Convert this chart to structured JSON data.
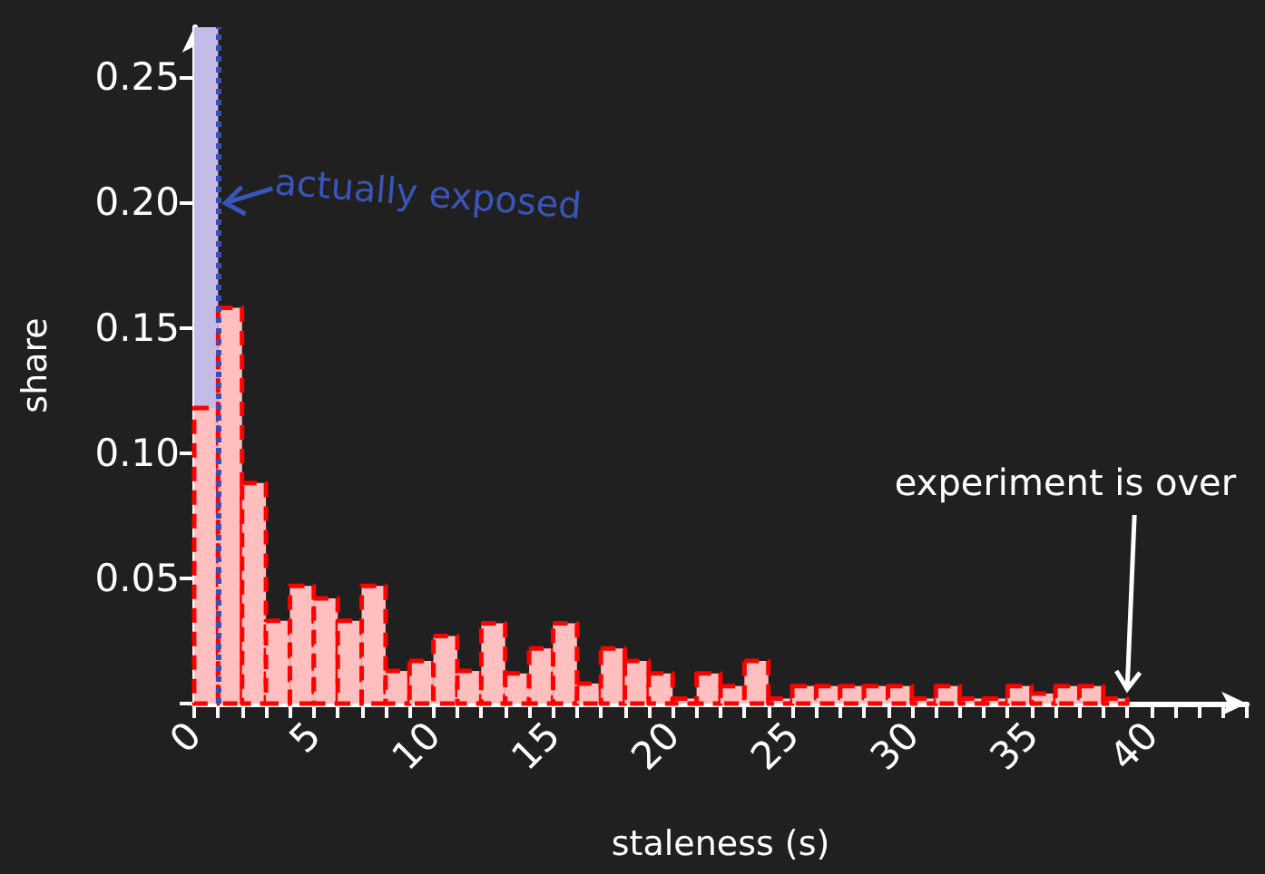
{
  "chart_data": {
    "type": "histogram",
    "xlabel": "staleness (s)",
    "ylabel": "share",
    "bins": [
      0,
      1,
      2,
      3,
      4,
      5,
      6,
      7,
      8,
      9,
      10,
      11,
      12,
      13,
      14,
      15,
      16,
      17,
      18,
      19,
      20,
      21,
      22,
      23,
      24,
      25,
      26,
      27,
      28,
      29,
      30,
      31,
      32,
      33,
      34,
      35,
      36,
      37,
      38,
      39
    ],
    "series": [
      {
        "color": "#ff0000",
        "values": [
          0.118,
          0.158,
          0.088,
          0.033,
          0.047,
          0.042,
          0.033,
          0.047,
          0.013,
          0.017,
          0.027,
          0.013,
          0.032,
          0.012,
          0.022,
          0.032,
          0.008,
          0.022,
          0.017,
          0.012,
          0.002,
          0.012,
          0.007,
          0.017,
          0.002,
          0.007,
          0.007,
          0.007,
          0.007,
          0.007,
          0.002,
          0.007,
          0.002,
          0.002,
          0.007,
          0.004,
          0.007,
          0.007,
          0.002
        ]
      }
    ],
    "line_style": "dashed",
    "xlim": [
      0,
      44
    ],
    "xticks": [
      0,
      {
        "value": 1,
        "label": null
      },
      {
        "value": 2,
        "label": null
      },
      {
        "value": 3,
        "label": null
      },
      {
        "value": 4,
        "label": null
      },
      5,
      {
        "value": 6,
        "label": null
      },
      {
        "value": 7,
        "label": null
      },
      {
        "value": 8,
        "label": null
      },
      {
        "value": 9,
        "label": null
      },
      10,
      {
        "value": 11,
        "label": null
      },
      {
        "value": 12,
        "label": null
      },
      {
        "value": 13,
        "label": null
      },
      {
        "value": 14,
        "label": null
      },
      15,
      {
        "value": 16,
        "label": null
      },
      {
        "value": 17,
        "label": null
      },
      {
        "value": 18,
        "label": null
      },
      {
        "value": 19,
        "label": null
      },
      20,
      {
        "value": 21,
        "label": null
      },
      {
        "value": 22,
        "label": null
      },
      {
        "value": 23,
        "label": null
      },
      {
        "value": 24,
        "label": null
      },
      25,
      {
        "value": 26,
        "label": null
      },
      {
        "value": 27,
        "label": null
      },
      {
        "value": 28,
        "label": null
      },
      {
        "value": 29,
        "label": null
      },
      30,
      {
        "value": 31,
        "label": null
      },
      {
        "value": 32,
        "label": null
      },
      {
        "value": 33,
        "label": null
      },
      {
        "value": 34,
        "label": null
      },
      35,
      {
        "value": 36,
        "label": null
      },
      {
        "value": 37,
        "label": null
      },
      {
        "value": 38,
        "label": null
      },
      {
        "value": 39,
        "label": null
      },
      40,
      {
        "value": 41,
        "label": null
      },
      {
        "value": 42,
        "label": null
      },
      {
        "value": 43,
        "label": null
      },
      {
        "value": 44,
        "label": null
      }
    ],
    "ylim": [
      0,
      0.27
    ],
    "yticks": [
      {
        "value": 0,
        "label": null
      },
      0.05,
      {
        "value": 0.1,
        "label": "0.10"
      },
      0.15,
      {
        "value": 0.2,
        "label": "0.20"
      },
      0.25
    ],
    "grid": false,
    "bands": [
      {
        "axis": "x",
        "from": 0,
        "to": 1,
        "label": "actually exposed",
        "color": "#c4bce6"
      }
    ],
    "ref_lines": [
      {
        "axis": "x",
        "value": 1,
        "color": "#3a4fb0",
        "line_style": "dotted"
      }
    ],
    "annotations": [
      "experiment is over"
    ]
  }
}
